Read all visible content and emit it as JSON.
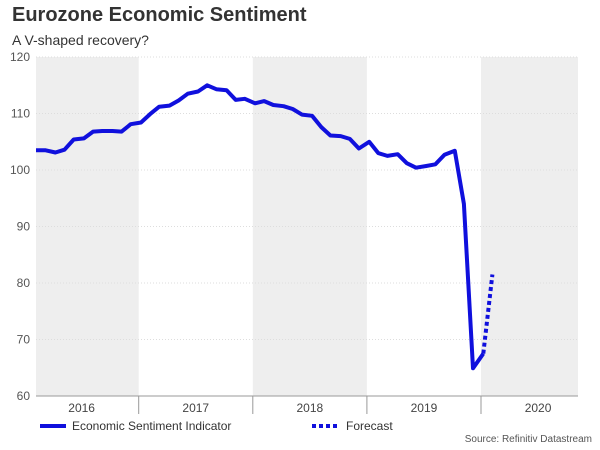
{
  "chart_data": {
    "type": "line",
    "title": "Eurozone Economic Sentiment",
    "subtitle": "A V-shaped recovery?",
    "source": "Source: Refinitiv Datastream",
    "ylim": [
      60,
      120
    ],
    "yticks": [
      60,
      70,
      80,
      90,
      100,
      110,
      120
    ],
    "xlim": [
      2015.6,
      2020.35
    ],
    "year_labels": [
      {
        "label": "2016",
        "x": 2016
      },
      {
        "label": "2017",
        "x": 2017
      },
      {
        "label": "2018",
        "x": 2018
      },
      {
        "label": "2019",
        "x": 2019
      },
      {
        "label": "2020",
        "x": 2020
      }
    ],
    "shaded_years": [
      {
        "from": 2015.6,
        "to": 2016.5
      },
      {
        "from": 2017.5,
        "to": 2018.5
      },
      {
        "from": 2019.5,
        "to": 2020.35
      }
    ],
    "legend": [
      {
        "name": "Economic Sentiment Indicator",
        "style": "solid"
      },
      {
        "name": "Forecast",
        "style": "dotted"
      }
    ],
    "colors": {
      "series": "#1010dd",
      "shade": "#eeeeee",
      "grid": "#dddddd"
    },
    "series": [
      {
        "name": "Economic Sentiment Indicator",
        "points": [
          [
            2015.6,
            103.5
          ],
          [
            2015.68,
            103.5
          ],
          [
            2015.77,
            103.1
          ],
          [
            2015.85,
            103.6
          ],
          [
            2015.93,
            105.4
          ],
          [
            2016.02,
            105.6
          ],
          [
            2016.1,
            106.8
          ],
          [
            2016.18,
            106.9
          ],
          [
            2016.27,
            106.9
          ],
          [
            2016.35,
            106.8
          ],
          [
            2016.43,
            108.1
          ],
          [
            2016.52,
            108.4
          ],
          [
            2016.6,
            109.9
          ],
          [
            2016.68,
            111.2
          ],
          [
            2016.77,
            111.4
          ],
          [
            2016.85,
            112.3
          ],
          [
            2016.93,
            113.5
          ],
          [
            2017.02,
            113.9
          ],
          [
            2017.1,
            115.0
          ],
          [
            2017.18,
            114.3
          ],
          [
            2017.27,
            114.1
          ],
          [
            2017.35,
            112.4
          ],
          [
            2017.43,
            112.6
          ],
          [
            2017.52,
            111.8
          ],
          [
            2017.6,
            112.2
          ],
          [
            2017.68,
            111.5
          ],
          [
            2017.77,
            111.3
          ],
          [
            2017.85,
            110.8
          ],
          [
            2017.93,
            109.8
          ],
          [
            2018.02,
            109.6
          ],
          [
            2018.1,
            107.6
          ],
          [
            2018.18,
            106.1
          ],
          [
            2018.27,
            106.0
          ],
          [
            2018.35,
            105.5
          ],
          [
            2018.43,
            103.8
          ],
          [
            2018.52,
            105.0
          ],
          [
            2018.6,
            103.0
          ],
          [
            2018.68,
            102.5
          ],
          [
            2018.77,
            102.8
          ],
          [
            2018.85,
            101.2
          ],
          [
            2018.93,
            100.4
          ],
          [
            2019.02,
            100.7
          ],
          [
            2019.1,
            101.0
          ],
          [
            2019.18,
            102.7
          ],
          [
            2019.27,
            103.4
          ],
          [
            2019.35,
            94.0
          ],
          [
            2019.43,
            64.9
          ],
          [
            2019.52,
            67.5
          ]
        ]
      },
      {
        "name": "Forecast",
        "points": [
          [
            2019.52,
            67.5
          ],
          [
            2019.6,
            81.5
          ]
        ]
      }
    ]
  }
}
